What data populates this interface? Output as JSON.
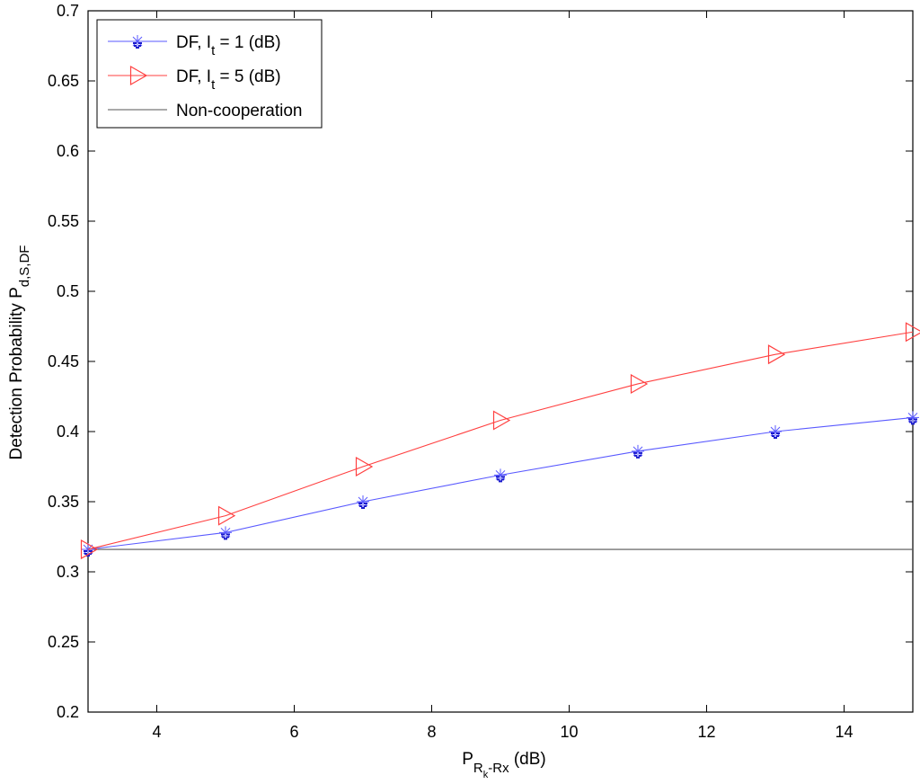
{
  "chart_data": {
    "type": "line",
    "x": [
      3,
      5,
      7,
      9,
      11,
      13,
      15
    ],
    "xlim": [
      3,
      15
    ],
    "ylim": [
      0.2,
      0.7
    ],
    "xticks": [
      4,
      6,
      8,
      10,
      12,
      14
    ],
    "yticks": [
      0.2,
      0.25,
      0.3,
      0.35,
      0.4,
      0.45,
      0.5,
      0.55,
      0.6,
      0.65,
      0.7
    ],
    "xlabel": {
      "main": "P",
      "sub": "R",
      "subsub": "k",
      "sub_tail": "-Rx",
      "tail": " (dB)"
    },
    "ylabel": {
      "main": "Detection Probability P",
      "sub": "d,S,DF"
    },
    "grid": false,
    "legend_position": "top-left",
    "series": [
      {
        "legend": {
          "prefix": "DF, I",
          "sub": "t",
          "suffix": " = 1 (dB)"
        },
        "color": "#5a5aff",
        "marker": "asterisk",
        "values": [
          0.316,
          0.328,
          0.35,
          0.369,
          0.386,
          0.4,
          0.41
        ]
      },
      {
        "legend": {
          "prefix": "DF, I",
          "sub": "t",
          "suffix": " = 5 (dB)"
        },
        "color": "#ff4040",
        "marker": "triangle-right",
        "values": [
          0.316,
          0.34,
          0.375,
          0.408,
          0.434,
          0.455,
          0.471
        ]
      },
      {
        "legend": {
          "prefix": "Non-cooperation",
          "sub": "",
          "suffix": ""
        },
        "color": "#555555",
        "marker": "none",
        "values": [
          0.316,
          0.316,
          0.316,
          0.316,
          0.316,
          0.316,
          0.316
        ]
      }
    ]
  }
}
